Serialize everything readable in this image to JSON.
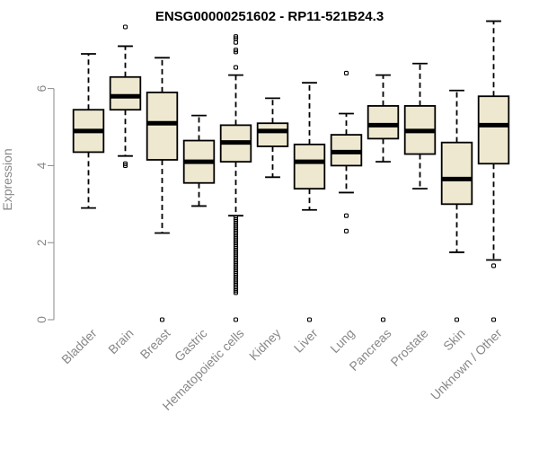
{
  "chart_data": {
    "type": "boxplot",
    "title": "ENSG00000251602 - RP11-521B24.3",
    "ylabel": "Expression",
    "xlabel": "",
    "ylim": [
      0,
      7.6
    ],
    "yticks": [
      0,
      2,
      4,
      6
    ],
    "grid": false,
    "box_color": "#EEE8D0",
    "categories": [
      "Bladder",
      "Brain",
      "Breast",
      "Gastric",
      "Hematopoietic cells",
      "Kidney",
      "Liver",
      "Lung",
      "Pancreas",
      "Prostate",
      "Skin",
      "Unknown / Other"
    ],
    "boxes": [
      {
        "category": "Bladder",
        "whisker_low": 2.9,
        "q1": 4.35,
        "median": 4.9,
        "q3": 5.45,
        "whisker_high": 6.9,
        "outliers": []
      },
      {
        "category": "Brain",
        "whisker_low": 4.25,
        "q1": 5.45,
        "median": 5.8,
        "q3": 6.3,
        "whisker_high": 7.1,
        "outliers": [
          4.0,
          4.05,
          7.6
        ]
      },
      {
        "category": "Breast",
        "whisker_low": 2.25,
        "q1": 4.15,
        "median": 5.1,
        "q3": 5.9,
        "whisker_high": 6.8,
        "outliers": [
          0.0
        ]
      },
      {
        "category": "Gastric",
        "whisker_low": 2.95,
        "q1": 3.55,
        "median": 4.1,
        "q3": 4.65,
        "whisker_high": 5.3,
        "outliers": []
      },
      {
        "category": "Hematopoietic cells",
        "whisker_low": 2.7,
        "q1": 4.1,
        "median": 4.6,
        "q3": 5.05,
        "whisker_high": 6.35,
        "outliers": [
          0.0,
          0.7,
          0.75,
          0.8,
          0.85,
          0.9,
          0.95,
          1.0,
          1.05,
          1.1,
          1.15,
          1.2,
          1.25,
          1.3,
          1.35,
          1.4,
          1.45,
          1.5,
          1.55,
          1.6,
          1.65,
          1.7,
          1.75,
          1.8,
          1.85,
          1.9,
          1.95,
          2.0,
          2.05,
          2.1,
          2.15,
          2.2,
          2.25,
          2.3,
          2.35,
          2.4,
          2.45,
          2.5,
          2.55,
          2.6,
          2.65,
          6.55,
          6.95,
          7.0,
          7.2,
          7.3,
          7.35
        ]
      },
      {
        "category": "Kidney",
        "whisker_low": 3.7,
        "q1": 4.5,
        "median": 4.9,
        "q3": 5.1,
        "whisker_high": 5.75,
        "outliers": []
      },
      {
        "category": "Liver",
        "whisker_low": 2.85,
        "q1": 3.4,
        "median": 4.1,
        "q3": 4.55,
        "whisker_high": 6.15,
        "outliers": [
          0.0
        ]
      },
      {
        "category": "Lung",
        "whisker_low": 3.3,
        "q1": 4.0,
        "median": 4.35,
        "q3": 4.8,
        "whisker_high": 5.35,
        "outliers": [
          2.3,
          2.7,
          6.4
        ]
      },
      {
        "category": "Pancreas",
        "whisker_low": 4.1,
        "q1": 4.7,
        "median": 5.05,
        "q3": 5.55,
        "whisker_high": 6.35,
        "outliers": [
          0.0
        ]
      },
      {
        "category": "Prostate",
        "whisker_low": 3.4,
        "q1": 4.3,
        "median": 4.9,
        "q3": 5.55,
        "whisker_high": 6.65,
        "outliers": []
      },
      {
        "category": "Skin",
        "whisker_low": 1.75,
        "q1": 3.0,
        "median": 3.65,
        "q3": 4.6,
        "whisker_high": 5.95,
        "outliers": [
          0.0
        ]
      },
      {
        "category": "Unknown / Other",
        "whisker_low": 1.55,
        "q1": 4.05,
        "median": 5.05,
        "q3": 5.8,
        "whisker_high": 7.75,
        "outliers": [
          0.0,
          1.4
        ]
      }
    ]
  }
}
